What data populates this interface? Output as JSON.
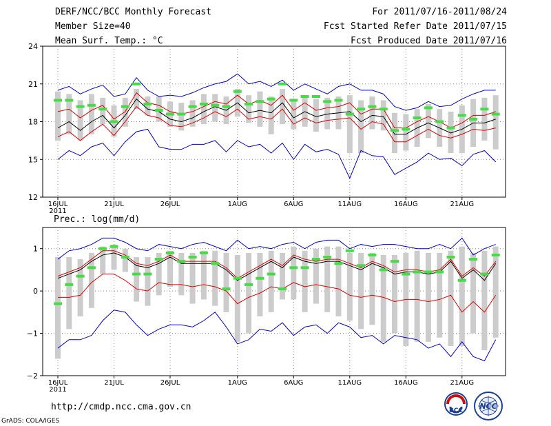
{
  "header": {
    "title": "DERF/NCC/BCC Monthly Forecast",
    "member_size": "Member Size=40",
    "variable": "Mean Surf. Temp.: °C",
    "period": "For 2011/07/16-2011/08/24",
    "started": "Fcst Started Refer Date 2011/07/15",
    "produced": "Fcst Produced Date 2011/07/16"
  },
  "footer": {
    "url": "http://cmdp.ncc.cma.gov.cn",
    "credit": "GrADS: COLA/IGES",
    "logo_bcc": "BCC",
    "logo_ncc": "NCC"
  },
  "colors": {
    "box": "#cccccc",
    "median": "#44dd44",
    "mean": "#000000",
    "spread": "#dd0000",
    "range": "#0000cc",
    "grid": "#888888"
  },
  "chart_data": [
    {
      "type": "box-plume",
      "title": "Mean Surf. Temp.: °C",
      "ylim": [
        12,
        24
      ],
      "yticks": [
        12,
        15,
        18,
        21,
        24
      ],
      "xtick_labels": [
        "16JUL",
        "21JUL",
        "26JUL",
        "1AUG",
        "6AUG",
        "11AUG",
        "16AUG",
        "21AUG"
      ],
      "xtick_days": [
        1,
        6,
        11,
        17,
        22,
        27,
        32,
        37
      ],
      "year_label": "2011",
      "days": [
        1,
        2,
        3,
        4,
        5,
        6,
        7,
        8,
        9,
        10,
        11,
        12,
        13,
        14,
        15,
        16,
        17,
        18,
        19,
        20,
        21,
        22,
        23,
        24,
        25,
        26,
        27,
        28,
        29,
        30,
        31,
        32,
        33,
        34,
        35,
        36,
        37,
        38,
        39,
        40
      ],
      "max": [
        20.5,
        20.8,
        20.2,
        20.6,
        20.9,
        20.0,
        20.2,
        21.5,
        20.5,
        20.0,
        20.1,
        20.0,
        20.3,
        20.7,
        21.0,
        21.2,
        21.8,
        21.0,
        21.2,
        20.8,
        21.3,
        20.5,
        21.0,
        20.6,
        20.2,
        20.8,
        21.0,
        20.5,
        20.5,
        20.2,
        19.2,
        18.9,
        19.1,
        19.6,
        19.2,
        19.3,
        19.8,
        20.2,
        20.5,
        20.5
      ],
      "upper": [
        18.8,
        19.0,
        18.3,
        18.9,
        19.3,
        18.2,
        18.8,
        20.3,
        19.5,
        19.3,
        18.8,
        18.6,
        18.8,
        19.2,
        19.6,
        19.4,
        20.1,
        19.4,
        19.7,
        19.3,
        20.1,
        18.9,
        19.5,
        18.9,
        19.1,
        19.2,
        19.5,
        18.6,
        19.0,
        19.0,
        17.5,
        17.5,
        18.0,
        18.4,
        18.0,
        17.5,
        17.9,
        18.5,
        18.5,
        18.8
      ],
      "mean": [
        17.5,
        18.0,
        17.3,
        18.0,
        18.5,
        17.5,
        18.5,
        19.8,
        19.0,
        18.8,
        18.2,
        18.0,
        18.3,
        18.8,
        19.2,
        18.9,
        19.5,
        18.7,
        18.9,
        18.7,
        19.5,
        18.3,
        18.8,
        18.4,
        18.6,
        18.7,
        18.8,
        18.0,
        18.5,
        18.4,
        17.0,
        17.0,
        17.5,
        17.9,
        17.5,
        17.1,
        17.4,
        17.9,
        17.9,
        18.2
      ],
      "lower": [
        16.8,
        17.2,
        16.5,
        17.2,
        17.8,
        16.9,
        18.0,
        19.2,
        18.5,
        18.3,
        17.7,
        17.6,
        17.9,
        18.3,
        18.8,
        18.4,
        19.0,
        18.2,
        18.4,
        18.2,
        19.0,
        17.8,
        18.3,
        17.9,
        18.1,
        18.2,
        18.3,
        17.4,
        18.0,
        17.8,
        16.4,
        16.4,
        16.9,
        17.4,
        16.9,
        16.7,
        17.0,
        17.4,
        17.3,
        17.5
      ],
      "min": [
        15.0,
        15.7,
        15.3,
        16.0,
        16.3,
        15.3,
        16.4,
        17.2,
        17.4,
        16.0,
        15.8,
        15.8,
        16.2,
        16.2,
        16.5,
        15.6,
        16.5,
        16.0,
        16.2,
        15.5,
        16.3,
        15.0,
        16.2,
        15.6,
        15.8,
        15.4,
        13.5,
        15.7,
        15.3,
        15.2,
        13.8,
        14.3,
        14.8,
        15.5,
        15.0,
        15.1,
        14.5,
        15.4,
        15.7,
        14.8
      ],
      "box_top": [
        20.4,
        20.2,
        19.7,
        20.2,
        19.9,
        19.3,
        19.9,
        20.6,
        20.0,
        20.0,
        19.6,
        19.5,
        19.7,
        20.2,
        20.2,
        20.0,
        20.6,
        20.1,
        20.4,
        20.0,
        20.6,
        19.8,
        20.0,
        19.8,
        19.9,
        20.0,
        20.1,
        19.7,
        20.0,
        19.7,
        18.7,
        18.6,
        19.0,
        19.4,
        19.0,
        18.8,
        19.3,
        19.8,
        19.9,
        20.1
      ],
      "box_bottom": [
        16.5,
        17.0,
        16.5,
        17.0,
        17.8,
        16.8,
        17.6,
        19.0,
        18.5,
        18.0,
        17.6,
        17.3,
        17.6,
        17.8,
        18.0,
        17.8,
        18.4,
        17.9,
        17.6,
        17.0,
        17.8,
        17.4,
        17.6,
        17.2,
        17.4,
        17.4,
        15.5,
        15.5,
        17.4,
        17.3,
        15.5,
        15.7,
        16.0,
        16.7,
        16.0,
        15.5,
        15.5,
        16.0,
        16.5,
        15.8
      ],
      "median": [
        19.7,
        19.7,
        19.2,
        19.3,
        19.0,
        18.0,
        19.2,
        21.0,
        19.4,
        18.9,
        18.6,
        18.6,
        19.2,
        19.4,
        19.3,
        19.2,
        20.4,
        19.4,
        19.6,
        19.8,
        21.0,
        19.7,
        20.0,
        20.0,
        19.6,
        19.7,
        18.6,
        19.0,
        19.2,
        19.0,
        17.3,
        17.4,
        18.3,
        19.1,
        18.0,
        17.5,
        18.5,
        18.2,
        19.0,
        18.6
      ]
    },
    {
      "type": "box-plume",
      "title": "Prec.: log(mm/d)",
      "ylim": [
        -2,
        1.5
      ],
      "yticks": [
        -2,
        -1,
        0,
        1
      ],
      "xtick_labels": [
        "16JUL",
        "21JUL",
        "26JUL",
        "1AUG",
        "6AUG",
        "11AUG",
        "16AUG",
        "21AUG"
      ],
      "xtick_days": [
        1,
        6,
        11,
        17,
        22,
        27,
        32,
        37
      ],
      "year_label": "2011",
      "days": [
        1,
        2,
        3,
        4,
        5,
        6,
        7,
        8,
        9,
        10,
        11,
        12,
        13,
        14,
        15,
        16,
        17,
        18,
        19,
        20,
        21,
        22,
        23,
        24,
        25,
        26,
        27,
        28,
        29,
        30,
        31,
        32,
        33,
        34,
        35,
        36,
        37,
        38,
        39,
        40
      ],
      "max": [
        0.75,
        0.95,
        1.0,
        1.1,
        1.25,
        1.25,
        1.15,
        1.0,
        0.95,
        1.1,
        1.05,
        1.0,
        1.1,
        1.15,
        1.05,
        0.95,
        1.2,
        1.0,
        1.05,
        1.0,
        1.1,
        1.15,
        1.0,
        1.15,
        1.2,
        1.2,
        1.0,
        1.1,
        1.05,
        1.1,
        1.1,
        1.05,
        1.0,
        1.0,
        1.1,
        1.0,
        1.25,
        0.85,
        1.0,
        1.1
      ],
      "upper": [
        0.35,
        0.45,
        0.55,
        0.75,
        0.95,
        0.95,
        0.85,
        0.65,
        0.6,
        0.7,
        0.85,
        0.7,
        0.7,
        0.7,
        0.7,
        0.55,
        0.3,
        0.45,
        0.6,
        0.75,
        0.6,
        0.85,
        0.75,
        0.7,
        0.75,
        0.75,
        0.65,
        0.55,
        0.7,
        0.6,
        0.45,
        0.5,
        0.5,
        0.45,
        0.5,
        0.75,
        0.35,
        0.55,
        0.35,
        0.7
      ],
      "mean": [
        0.3,
        0.4,
        0.5,
        0.7,
        0.85,
        0.9,
        0.8,
        0.6,
        0.55,
        0.65,
        0.8,
        0.65,
        0.65,
        0.65,
        0.65,
        0.5,
        0.25,
        0.4,
        0.55,
        0.7,
        0.55,
        0.8,
        0.7,
        0.65,
        0.7,
        0.7,
        0.6,
        0.5,
        0.65,
        0.55,
        0.4,
        0.45,
        0.45,
        0.4,
        0.45,
        0.7,
        0.3,
        0.5,
        0.25,
        0.65
      ],
      "lower": [
        -0.15,
        -0.15,
        -0.1,
        0.2,
        0.4,
        0.4,
        0.25,
        0.05,
        0.0,
        0.2,
        0.15,
        0.15,
        0.1,
        0.15,
        0.1,
        0.0,
        -0.3,
        -0.15,
        -0.05,
        0.1,
        0.05,
        0.2,
        0.1,
        0.15,
        0.1,
        0.05,
        -0.1,
        -0.15,
        -0.1,
        -0.15,
        -0.25,
        -0.2,
        -0.2,
        -0.25,
        -0.2,
        -0.1,
        -0.5,
        -0.25,
        -0.5,
        -0.1
      ],
      "min": [
        -1.35,
        -1.15,
        -1.15,
        -1.05,
        -0.7,
        -0.45,
        -0.5,
        -0.8,
        -1.05,
        -0.9,
        -0.8,
        -0.8,
        -0.85,
        -0.7,
        -0.5,
        -0.85,
        -1.25,
        -1.15,
        -0.9,
        -0.95,
        -0.75,
        -1.05,
        -0.85,
        -0.8,
        -1.0,
        -0.75,
        -0.85,
        -1.1,
        -1.05,
        -1.25,
        -1.05,
        -1.1,
        -1.15,
        -1.35,
        -1.25,
        -1.55,
        -1.2,
        -1.55,
        -1.65,
        -1.15
      ],
      "box_top": [
        0.8,
        0.8,
        0.75,
        0.9,
        1.05,
        1.1,
        1.0,
        0.8,
        0.8,
        0.9,
        0.95,
        0.9,
        0.9,
        0.95,
        0.95,
        0.9,
        0.85,
        0.9,
        0.9,
        0.95,
        0.9,
        1.05,
        0.95,
        1.0,
        1.05,
        1.05,
        0.9,
        0.9,
        0.9,
        0.85,
        0.85,
        0.9,
        0.95,
        0.9,
        0.9,
        0.95,
        1.05,
        0.9,
        0.95,
        1.05
      ],
      "box_bottom": [
        -1.6,
        -0.9,
        -0.6,
        -0.4,
        0.4,
        0.5,
        0.45,
        -0.25,
        -0.35,
        -0.1,
        0.1,
        -0.1,
        -0.3,
        -0.2,
        -0.35,
        -0.5,
        -1.2,
        -1.0,
        -0.6,
        -0.5,
        -0.2,
        -0.2,
        -0.5,
        -0.3,
        -0.5,
        -0.6,
        -0.7,
        -0.9,
        -0.8,
        -1.2,
        -1.0,
        -1.3,
        -1.2,
        -1.2,
        -1.1,
        -1.3,
        -1.3,
        -1.0,
        -1.4,
        -1.1
      ],
      "median": [
        -0.3,
        0.15,
        0.35,
        0.55,
        1.0,
        1.05,
        0.8,
        0.4,
        0.4,
        0.75,
        0.9,
        0.7,
        0.8,
        0.9,
        0.65,
        0.05,
        0.3,
        0.15,
        0.3,
        0.4,
        0.05,
        0.55,
        0.55,
        0.75,
        0.8,
        0.65,
        0.95,
        0.6,
        0.85,
        0.5,
        0.7,
        0.4,
        0.45,
        0.45,
        0.45,
        0.8,
        0.25,
        0.75,
        0.4,
        0.85
      ]
    }
  ]
}
